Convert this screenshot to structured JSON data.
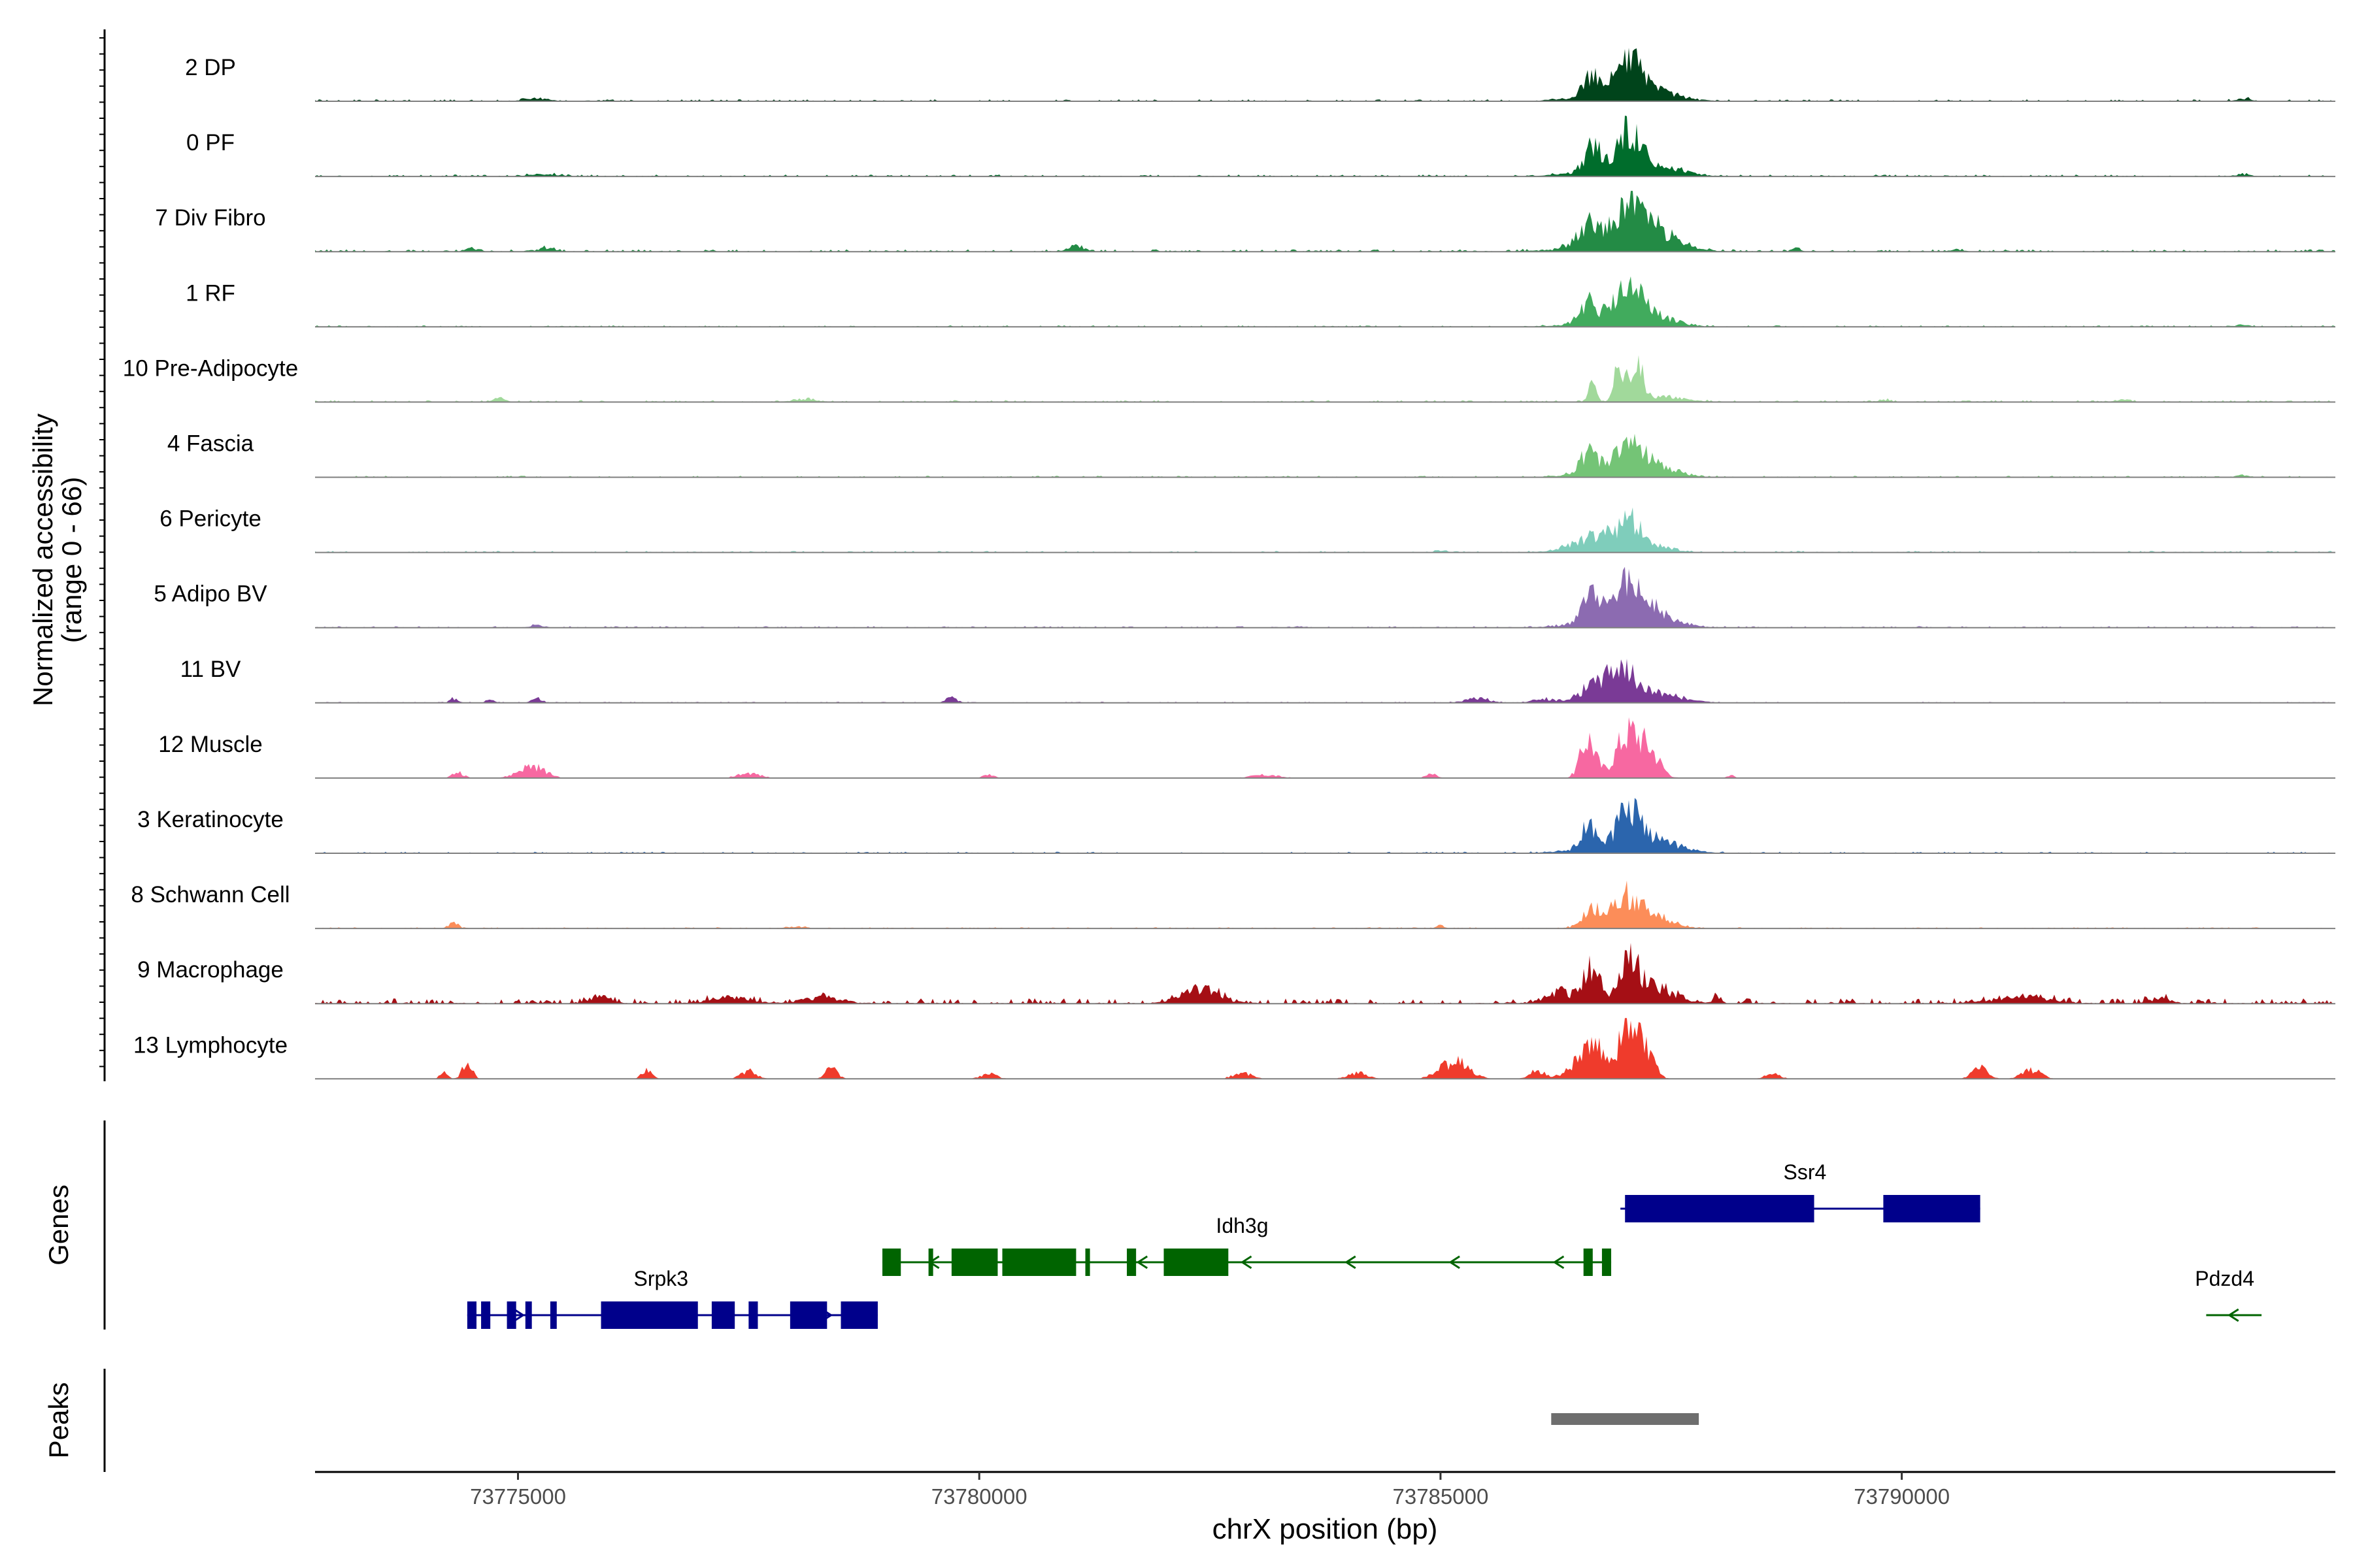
{
  "chart_data": {
    "type": "area",
    "title": "",
    "xlabel": "chrX position (bp)",
    "ylabel_line1": "Normalized accessibility",
    "ylabel_line2": "(range 0 - 66)",
    "y_range": [
      0,
      66
    ],
    "x_range": [
      73772800,
      73794700
    ],
    "x_ticks": [
      73775000,
      73780000,
      73785000,
      73790000
    ],
    "x_tick_labels": [
      "73775000",
      "73780000",
      "73785000",
      "73790000"
    ],
    "panel_labels": {
      "genes": "Genes",
      "peaks": "Peaks"
    },
    "tracks": [
      {
        "name": "2 DP",
        "color": "#00441b",
        "noise": 0.05,
        "peaks": [
          [
            73786650,
            90,
            0.55
          ],
          [
            73787050,
            120,
            0.8
          ],
          [
            73787350,
            250,
            0.18
          ],
          [
            73786900,
            350,
            0.25
          ],
          [
            73775200,
            120,
            0.08
          ],
          [
            73793700,
            80,
            0.06
          ]
        ]
      },
      {
        "name": "0 PF",
        "color": "#006d2c",
        "noise": 0.05,
        "peaks": [
          [
            73786650,
            90,
            0.55
          ],
          [
            73787050,
            120,
            0.85
          ],
          [
            73787300,
            300,
            0.2
          ],
          [
            73786900,
            350,
            0.22
          ],
          [
            73775300,
            150,
            0.06
          ],
          [
            73793700,
            80,
            0.05
          ]
        ]
      },
      {
        "name": "7 Div Fibro",
        "color": "#238b45",
        "noise": 0.06,
        "peaks": [
          [
            73786600,
            110,
            0.5
          ],
          [
            73787050,
            170,
            0.85
          ],
          [
            73787350,
            250,
            0.35
          ],
          [
            73786900,
            400,
            0.25
          ],
          [
            73781050,
            80,
            0.15
          ],
          [
            73774500,
            60,
            0.08
          ],
          [
            73775300,
            80,
            0.1
          ],
          [
            73788850,
            40,
            0.08
          ],
          [
            73790600,
            60,
            0.06
          ]
        ]
      },
      {
        "name": "1 RF",
        "color": "#41ab5d",
        "noise": 0.04,
        "peaks": [
          [
            73786600,
            90,
            0.5
          ],
          [
            73787050,
            150,
            0.7
          ],
          [
            73787300,
            250,
            0.18
          ],
          [
            73786900,
            350,
            0.2
          ],
          [
            73793700,
            60,
            0.05
          ]
        ]
      },
      {
        "name": "10 Pre-Adipocyte",
        "color": "#a1d99b",
        "noise": 0.05,
        "peaks": [
          [
            73786650,
            40,
            0.5
          ],
          [
            73786950,
            60,
            0.95
          ],
          [
            73787150,
            50,
            0.75
          ],
          [
            73787350,
            250,
            0.15
          ],
          [
            73774800,
            60,
            0.1
          ],
          [
            73778100,
            120,
            0.08
          ],
          [
            73789800,
            60,
            0.06
          ],
          [
            73792400,
            80,
            0.05
          ]
        ]
      },
      {
        "name": "4 Fascia",
        "color": "#74c476",
        "noise": 0.04,
        "peaks": [
          [
            73786600,
            90,
            0.5
          ],
          [
            73787050,
            150,
            0.6
          ],
          [
            73787300,
            250,
            0.2
          ],
          [
            73786900,
            350,
            0.2
          ],
          [
            73793700,
            60,
            0.06
          ]
        ]
      },
      {
        "name": "6 Pericyte",
        "color": "#7fcdbb",
        "noise": 0.04,
        "peaks": [
          [
            73786750,
            150,
            0.35
          ],
          [
            73787050,
            120,
            0.8
          ],
          [
            73786500,
            200,
            0.2
          ],
          [
            73787350,
            200,
            0.12
          ],
          [
            73785000,
            60,
            0.05
          ]
        ]
      },
      {
        "name": "5 Adipo BV",
        "color": "#8c6bb1",
        "noise": 0.04,
        "peaks": [
          [
            73786650,
            100,
            0.65
          ],
          [
            73787050,
            150,
            0.85
          ],
          [
            73787350,
            220,
            0.25
          ],
          [
            73786900,
            350,
            0.25
          ],
          [
            73775200,
            80,
            0.06
          ]
        ]
      },
      {
        "name": "11 BV",
        "color": "#7a3a96",
        "noise": 0.03,
        "peaks": [
          [
            73786950,
            150,
            0.8
          ],
          [
            73786650,
            180,
            0.35
          ],
          [
            73787350,
            250,
            0.25
          ],
          [
            73774300,
            40,
            0.12
          ],
          [
            73774700,
            40,
            0.12
          ],
          [
            73775200,
            50,
            0.12
          ],
          [
            73779700,
            60,
            0.12
          ],
          [
            73785400,
            120,
            0.12
          ],
          [
            73786100,
            100,
            0.1
          ]
        ]
      },
      {
        "name": "12 Muscle",
        "color": "#f768a1",
        "noise": 0.0,
        "peaks": [
          [
            73786600,
            80,
            1.05
          ],
          [
            73787050,
            140,
            1.25
          ],
          [
            73787300,
            100,
            0.5
          ],
          [
            73775150,
            140,
            0.3
          ],
          [
            73774350,
            60,
            0.15
          ],
          [
            73777500,
            120,
            0.12
          ],
          [
            73784900,
            60,
            0.1
          ],
          [
            73783100,
            150,
            0.08
          ],
          [
            73780100,
            60,
            0.08
          ],
          [
            73788150,
            40,
            0.08
          ]
        ]
      },
      {
        "name": "3 Keratinocyte",
        "color": "#2b65ad",
        "noise": 0.04,
        "peaks": [
          [
            73786600,
            80,
            0.55
          ],
          [
            73787050,
            130,
            0.9
          ],
          [
            73787350,
            250,
            0.25
          ],
          [
            73786900,
            400,
            0.15
          ]
        ]
      },
      {
        "name": "8 Schwann Cell",
        "color": "#fc8d59",
        "noise": 0.03,
        "peaks": [
          [
            73786650,
            110,
            0.45
          ],
          [
            73787000,
            140,
            0.75
          ],
          [
            73787300,
            200,
            0.3
          ],
          [
            73774300,
            50,
            0.15
          ],
          [
            73785000,
            40,
            0.08
          ],
          [
            73778000,
            100,
            0.05
          ]
        ]
      },
      {
        "name": "9 Macrophage",
        "color": "#a50f15",
        "noise": 0.14,
        "peaks": [
          [
            73786650,
            80,
            1.0
          ],
          [
            73787050,
            100,
            1.1
          ],
          [
            73787350,
            200,
            0.4
          ],
          [
            73786300,
            150,
            0.3
          ],
          [
            73782400,
            200,
            0.35
          ],
          [
            73775900,
            100,
            0.2
          ],
          [
            73777300,
            200,
            0.15
          ],
          [
            73778300,
            200,
            0.15
          ],
          [
            73788000,
            40,
            0.2
          ],
          [
            73791300,
            300,
            0.15
          ],
          [
            73792800,
            100,
            0.15
          ]
        ]
      },
      {
        "name": "13 Lymphocyte",
        "color": "#ef3b2c",
        "noise": 0.0,
        "peaks": [
          [
            73786650,
            180,
            0.8
          ],
          [
            73787050,
            100,
            1.35
          ],
          [
            73787250,
            80,
            0.55
          ],
          [
            73785150,
            150,
            0.45
          ],
          [
            73774450,
            50,
            0.45
          ],
          [
            73774200,
            40,
            0.2
          ],
          [
            73776400,
            50,
            0.3
          ],
          [
            73777500,
            80,
            0.2
          ],
          [
            73778400,
            60,
            0.3
          ],
          [
            73780100,
            80,
            0.15
          ],
          [
            73782850,
            100,
            0.15
          ],
          [
            73784100,
            100,
            0.15
          ],
          [
            73788600,
            80,
            0.12
          ],
          [
            73790850,
            80,
            0.3
          ],
          [
            73791400,
            100,
            0.25
          ],
          [
            73786050,
            80,
            0.2
          ]
        ]
      }
    ],
    "genes": [
      {
        "name": "Srpk3",
        "color": "#00008b",
        "row": 3,
        "start": 73774450,
        "end": 73778900,
        "strand": "+",
        "exons": [
          [
            73774450,
            73774550
          ],
          [
            73774600,
            73774700
          ],
          [
            73774880,
            73774980
          ],
          [
            73775080,
            73775150
          ],
          [
            73775350,
            73775420
          ],
          [
            73775900,
            73776950
          ],
          [
            73777100,
            73777350
          ],
          [
            73777500,
            73777600
          ],
          [
            73777950,
            73778350
          ],
          [
            73778500,
            73778900
          ]
        ],
        "label_pos": 73776550
      },
      {
        "name": "Idh3g",
        "color": "#006400",
        "row": 2,
        "start": 73778950,
        "end": 73786850,
        "strand": "-",
        "exons": [
          [
            73778950,
            73779150
          ],
          [
            73779450,
            73779500
          ],
          [
            73779700,
            73780200
          ],
          [
            73780250,
            73781050
          ],
          [
            73781150,
            73781200
          ],
          [
            73781600,
            73781700
          ],
          [
            73782000,
            73782700
          ],
          [
            73786550,
            73786650
          ],
          [
            73786750,
            73786850
          ]
        ],
        "label_pos": 73782850
      },
      {
        "name": "Ssr4",
        "color": "#00008b",
        "row": 1,
        "start": 73786950,
        "end": 73790850,
        "strand": "+",
        "exons": [
          [
            73787000,
            73789050
          ],
          [
            73789800,
            73790850
          ]
        ],
        "label_pos": 73788950
      },
      {
        "name": "Pdzd4",
        "color": "#006400",
        "row": 3,
        "start": 73793300,
        "end": 73793900,
        "strand": "-",
        "exons": [],
        "label_pos": 73793500
      }
    ],
    "peaks": [
      {
        "start": 73786200,
        "end": 73787800
      }
    ]
  }
}
